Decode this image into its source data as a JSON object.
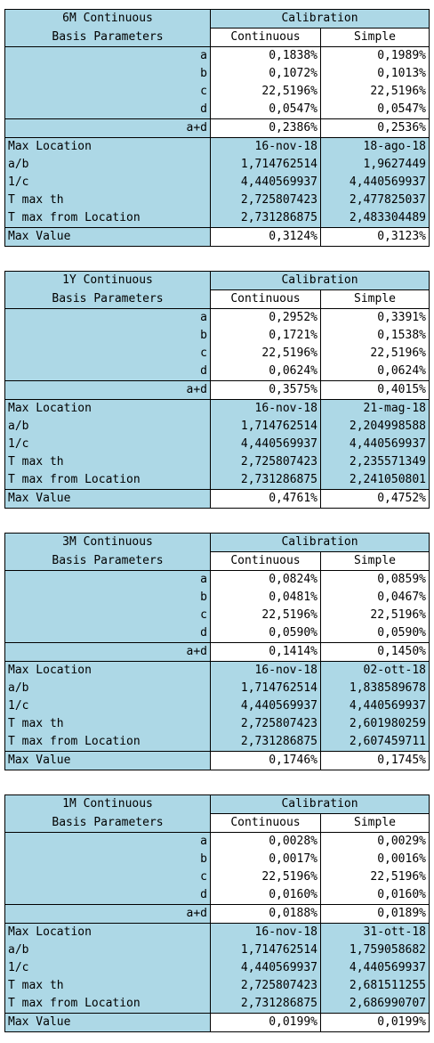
{
  "tables": [
    {
      "title": "6M Continuous",
      "subtitle": "Basis Parameters",
      "calibration": "Calibration",
      "col_continuous": "Continuous",
      "col_simple": "Simple",
      "params": [
        {
          "label": "a",
          "continuous": "0,1838%",
          "simple": "0,1989%"
        },
        {
          "label": "b",
          "continuous": "0,1072%",
          "simple": "0,1013%"
        },
        {
          "label": "c",
          "continuous": "22,5196%",
          "simple": "22,5196%"
        },
        {
          "label": "d",
          "continuous": "0,0547%",
          "simple": "0,0547%"
        }
      ],
      "apd": {
        "label": "a+d",
        "continuous": "0,2386%",
        "simple": "0,2536%"
      },
      "stats": [
        {
          "label": "Max Location",
          "continuous": "16-nov-18",
          "simple": "18-ago-18"
        },
        {
          "label": "a/b",
          "continuous": "1,714762514",
          "simple": "1,9627449"
        },
        {
          "label": "1/c",
          "continuous": "4,440569937",
          "simple": "4,440569937"
        },
        {
          "label": "T max th",
          "continuous": "2,725807423",
          "simple": "2,477825037"
        },
        {
          "label": "T max from Location",
          "continuous": "2,731286875",
          "simple": "2,483304489"
        }
      ],
      "max_value": {
        "label": "Max Value",
        "continuous": "0,3124%",
        "simple": "0,3123%"
      }
    },
    {
      "title": "1Y Continuous",
      "subtitle": "Basis Parameters",
      "calibration": "Calibration",
      "col_continuous": "Continuous",
      "col_simple": "Simple",
      "params": [
        {
          "label": "a",
          "continuous": "0,2952%",
          "simple": "0,3391%"
        },
        {
          "label": "b",
          "continuous": "0,1721%",
          "simple": "0,1538%"
        },
        {
          "label": "c",
          "continuous": "22,5196%",
          "simple": "22,5196%"
        },
        {
          "label": "d",
          "continuous": "0,0624%",
          "simple": "0,0624%"
        }
      ],
      "apd": {
        "label": "a+d",
        "continuous": "0,3575%",
        "simple": "0,4015%"
      },
      "stats": [
        {
          "label": "Max Location",
          "continuous": "16-nov-18",
          "simple": "21-mag-18"
        },
        {
          "label": "a/b",
          "continuous": "1,714762514",
          "simple": "2,204998588"
        },
        {
          "label": "1/c",
          "continuous": "4,440569937",
          "simple": "4,440569937"
        },
        {
          "label": "T max th",
          "continuous": "2,725807423",
          "simple": "2,235571349"
        },
        {
          "label": "T max from Location",
          "continuous": "2,731286875",
          "simple": "2,241050801"
        }
      ],
      "max_value": {
        "label": "Max Value",
        "continuous": "0,4761%",
        "simple": "0,4752%"
      }
    },
    {
      "title": "3M Continuous",
      "subtitle": "Basis Parameters",
      "calibration": "Calibration",
      "col_continuous": "Continuous",
      "col_simple": "Simple",
      "params": [
        {
          "label": "a",
          "continuous": "0,0824%",
          "simple": "0,0859%"
        },
        {
          "label": "b",
          "continuous": "0,0481%",
          "simple": "0,0467%"
        },
        {
          "label": "c",
          "continuous": "22,5196%",
          "simple": "22,5196%"
        },
        {
          "label": "d",
          "continuous": "0,0590%",
          "simple": "0,0590%"
        }
      ],
      "apd": {
        "label": "a+d",
        "continuous": "0,1414%",
        "simple": "0,1450%"
      },
      "stats": [
        {
          "label": "Max Location",
          "continuous": "16-nov-18",
          "simple": "02-ott-18"
        },
        {
          "label": "a/b",
          "continuous": "1,714762514",
          "simple": "1,838589678"
        },
        {
          "label": "1/c",
          "continuous": "4,440569937",
          "simple": "4,440569937"
        },
        {
          "label": "T max th",
          "continuous": "2,725807423",
          "simple": "2,601980259"
        },
        {
          "label": "T max from Location",
          "continuous": "2,731286875",
          "simple": "2,607459711"
        }
      ],
      "max_value": {
        "label": "Max Value",
        "continuous": "0,1746%",
        "simple": "0,1745%"
      }
    },
    {
      "title": "1M Continuous",
      "subtitle": "Basis Parameters",
      "calibration": "Calibration",
      "col_continuous": "Continuous",
      "col_simple": "Simple",
      "params": [
        {
          "label": "a",
          "continuous": "0,0028%",
          "simple": "0,0029%"
        },
        {
          "label": "b",
          "continuous": "0,0017%",
          "simple": "0,0016%"
        },
        {
          "label": "c",
          "continuous": "22,5196%",
          "simple": "22,5196%"
        },
        {
          "label": "d",
          "continuous": "0,0160%",
          "simple": "0,0160%"
        }
      ],
      "apd": {
        "label": "a+d",
        "continuous": "0,0188%",
        "simple": "0,0189%"
      },
      "stats": [
        {
          "label": "Max Location",
          "continuous": "16-nov-18",
          "simple": "31-ott-18"
        },
        {
          "label": "a/b",
          "continuous": "1,714762514",
          "simple": "1,759058682"
        },
        {
          "label": "1/c",
          "continuous": "4,440569937",
          "simple": "4,440569937"
        },
        {
          "label": "T max th",
          "continuous": "2,725807423",
          "simple": "2,681511255"
        },
        {
          "label": "T max from Location",
          "continuous": "2,731286875",
          "simple": "2,686990707"
        }
      ],
      "max_value": {
        "label": "Max Value",
        "continuous": "0,0199%",
        "simple": "0,0199%"
      }
    }
  ]
}
